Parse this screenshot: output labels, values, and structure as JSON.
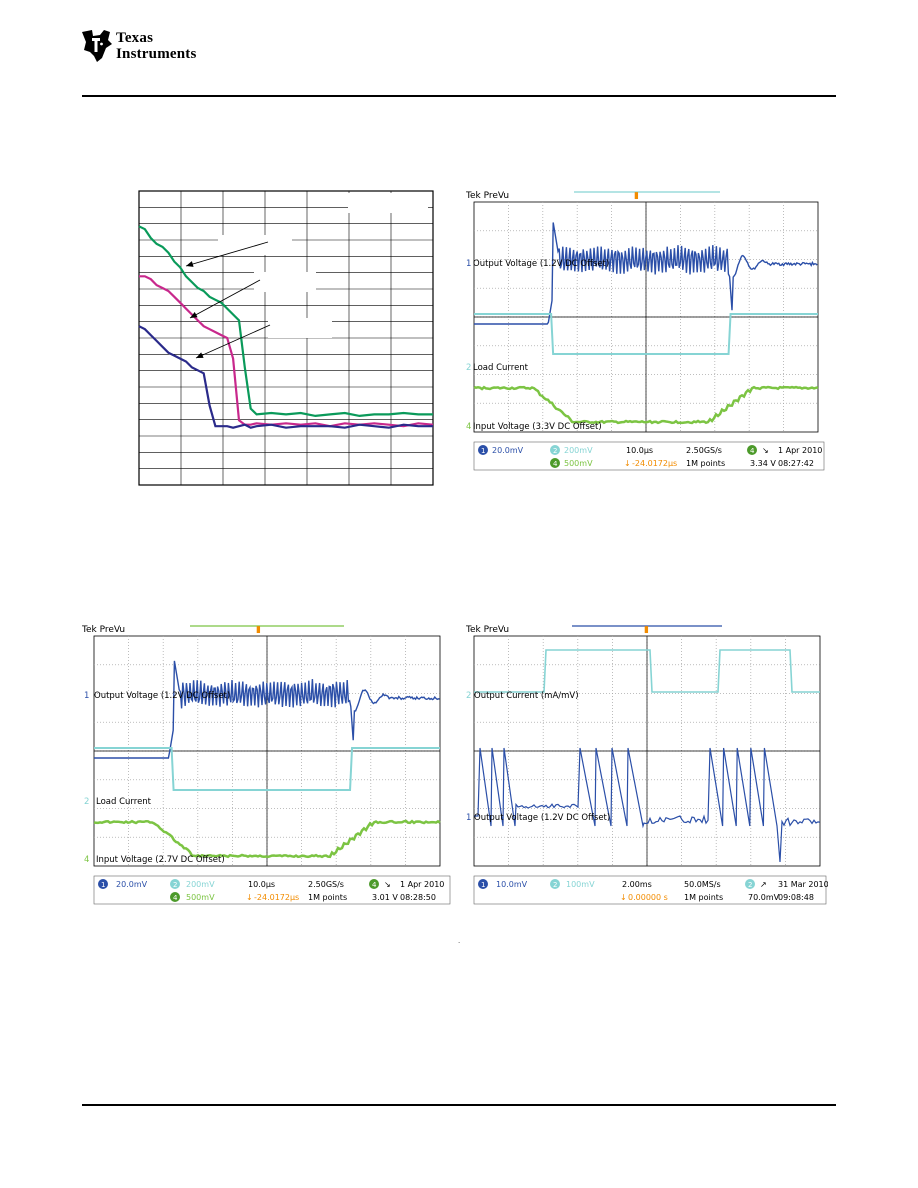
{
  "header": {
    "logo_line1": "Texas",
    "logo_line2": "Instruments"
  },
  "colors": {
    "blue": "#2b4fa8",
    "cyan": "#86d4d4",
    "green": "#7cc443",
    "orange": "#f28c00",
    "graph_green": "#0a9a5a",
    "graph_magenta": "#c8288c",
    "graph_navy": "#2a2a8a"
  },
  "chart_data": [
    {
      "type": "line",
      "title": "",
      "xlabel": "",
      "ylabel": "",
      "x": [
        0,
        0.02,
        0.04,
        0.06,
        0.08,
        0.1,
        0.12,
        0.14,
        0.16,
        0.18,
        0.2,
        0.22,
        0.24,
        0.26,
        0.28,
        0.3,
        0.32,
        0.34,
        0.36,
        0.38,
        0.4,
        0.45,
        0.5,
        0.55,
        0.6,
        0.65,
        0.7,
        0.75,
        0.8,
        0.85,
        0.9,
        0.95,
        1.0
      ],
      "series": [
        {
          "values": [
            0.88,
            0.87,
            0.84,
            0.82,
            0.81,
            0.79,
            0.76,
            0.74,
            0.71,
            0.69,
            0.67,
            0.66,
            0.64,
            0.63,
            0.62,
            0.6,
            0.58,
            0.56,
            0.4,
            0.26,
            0.24,
            0.245,
            0.24,
            0.245,
            0.235,
            0.24,
            0.245,
            0.235,
            0.24,
            0.24,
            0.245,
            0.24,
            0.24
          ]
        },
        {
          "values": [
            0.71,
            0.71,
            0.7,
            0.68,
            0.67,
            0.66,
            0.64,
            0.62,
            0.6,
            0.58,
            0.56,
            0.54,
            0.53,
            0.52,
            0.51,
            0.5,
            0.43,
            0.22,
            0.205,
            0.205,
            0.21,
            0.205,
            0.21,
            0.205,
            0.21,
            0.2,
            0.21,
            0.205,
            0.21,
            0.205,
            0.2,
            0.21,
            0.205
          ]
        },
        {
          "values": [
            0.54,
            0.53,
            0.51,
            0.49,
            0.47,
            0.45,
            0.44,
            0.43,
            0.42,
            0.4,
            0.39,
            0.38,
            0.27,
            0.2,
            0.2,
            0.2,
            0.195,
            0.2,
            0.205,
            0.195,
            0.2,
            0.205,
            0.195,
            0.2,
            0.2,
            0.2,
            0.195,
            0.205,
            0.2,
            0.195,
            0.205,
            0.2,
            0.2
          ]
        }
      ]
    }
  ],
  "scopes": [
    {
      "tek_label": "Tek PreVu",
      "trace_labels": [
        "Output Voltage (1.2V DC Offset)",
        "Load Current",
        "Input Voltage (3.3V DC Offset)"
      ],
      "channel_markers": [
        "1",
        "2",
        "4"
      ],
      "status": {
        "ch1_scale": "20.0mV",
        "ch2_scale": "200mV",
        "ch4_scale": "500mV",
        "timebase": "10.0µs",
        "delay": "-24.0172µs",
        "sample_rate": "2.50GS/s",
        "points": "1M points",
        "trig_channel": "4",
        "trig_level": "3.34 V",
        "date": "1 Apr 2010",
        "time": "08:27:42"
      }
    },
    {
      "tek_label": "Tek PreVu",
      "trace_labels": [
        "Output Voltage (1.2V DC Offset)",
        "Load Current",
        "Input Voltage (2.7V DC Offset)"
      ],
      "channel_markers": [
        "1",
        "2",
        "4"
      ],
      "status": {
        "ch1_scale": "20.0mV",
        "ch2_scale": "200mV",
        "ch4_scale": "500mV",
        "timebase": "10.0µs",
        "delay": "-24.0172µs",
        "sample_rate": "2.50GS/s",
        "points": "1M points",
        "trig_channel": "4",
        "trig_level": "3.01 V",
        "date": "1 Apr 2010",
        "time": "08:28:50"
      }
    },
    {
      "tek_label": "Tek PreVu",
      "trace_labels": [
        "Output Current (mA/mV)",
        "Output Voltage (1.2V DC Offset)"
      ],
      "channel_markers": [
        "2",
        "1"
      ],
      "status": {
        "ch1_scale": "10.0mV",
        "ch2_scale": "100mV",
        "ch4_scale": "",
        "timebase": "2.00ms",
        "delay": "0.00000 s",
        "sample_rate": "50.0MS/s",
        "points": "1M points",
        "trig_channel": "2",
        "trig_level": "70.0mV",
        "date": "31 Mar 2010",
        "time": "09:08:48"
      }
    }
  ]
}
